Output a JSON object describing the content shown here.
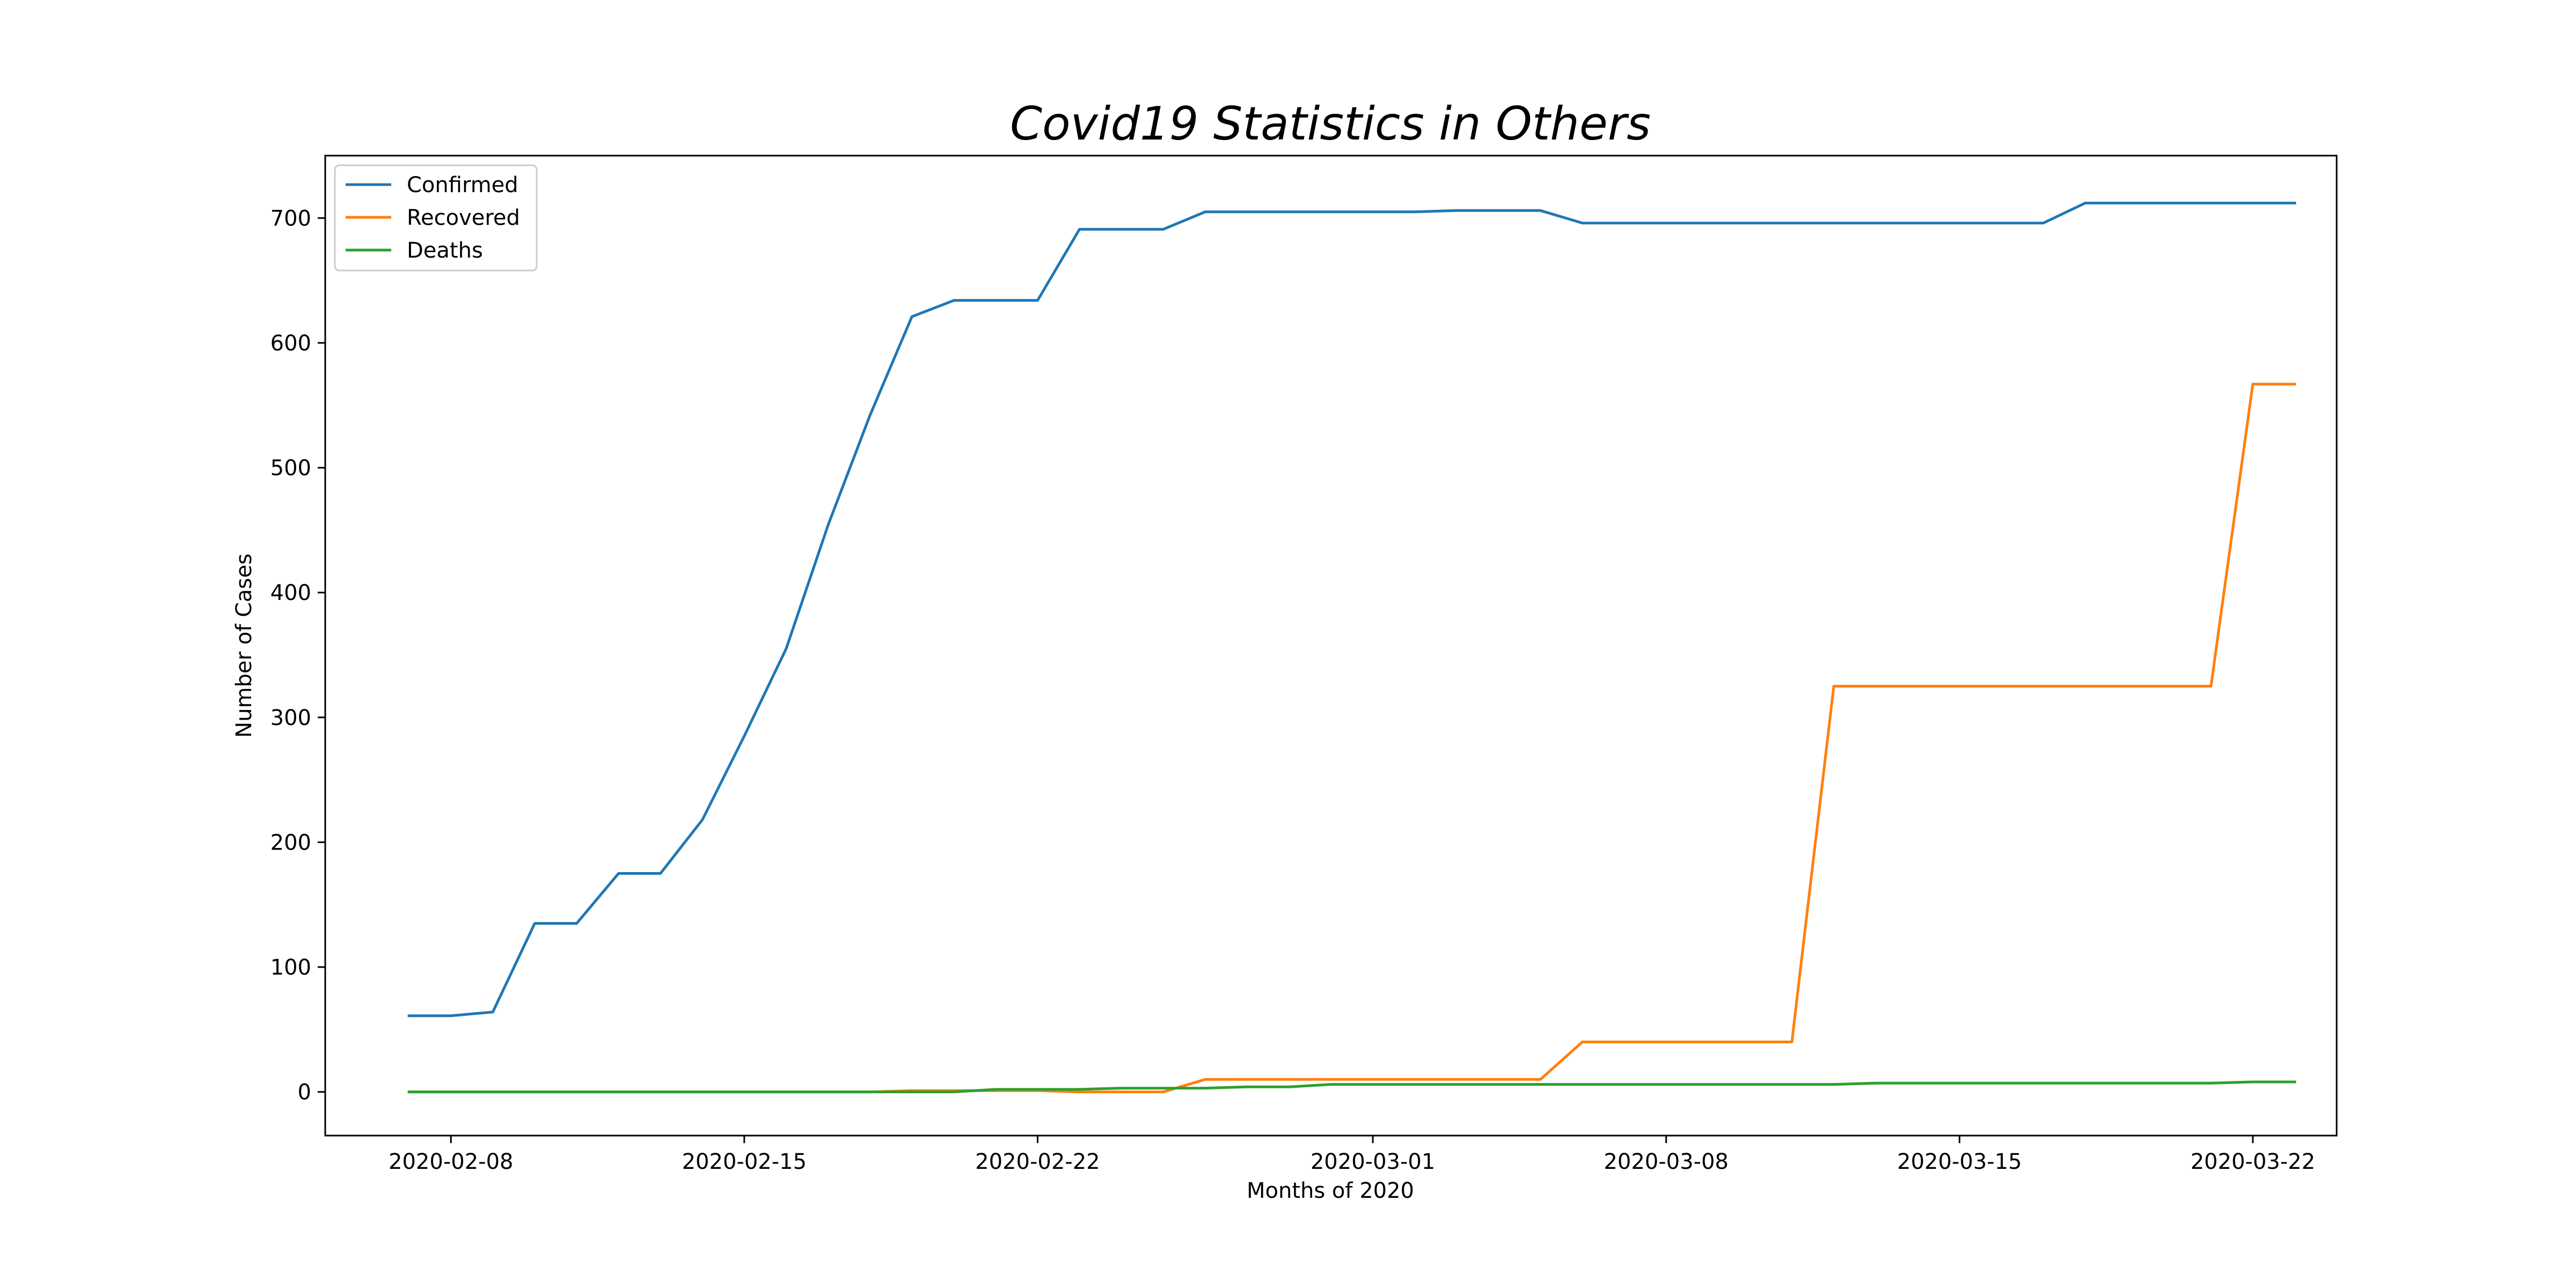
{
  "chart_data": {
    "type": "line",
    "title": "Covid19 Statistics in Others",
    "xlabel": "Months of 2020",
    "ylabel": "Number of Cases",
    "x_start": "2020-02-07",
    "x": [
      "2020-02-07",
      "2020-02-08",
      "2020-02-09",
      "2020-02-10",
      "2020-02-11",
      "2020-02-12",
      "2020-02-13",
      "2020-02-14",
      "2020-02-15",
      "2020-02-16",
      "2020-02-17",
      "2020-02-18",
      "2020-02-19",
      "2020-02-20",
      "2020-02-21",
      "2020-02-22",
      "2020-02-23",
      "2020-02-24",
      "2020-02-25",
      "2020-02-26",
      "2020-02-27",
      "2020-02-28",
      "2020-02-29",
      "2020-03-01",
      "2020-03-02",
      "2020-03-03",
      "2020-03-04",
      "2020-03-05",
      "2020-03-06",
      "2020-03-07",
      "2020-03-08",
      "2020-03-09",
      "2020-03-10",
      "2020-03-11",
      "2020-03-12",
      "2020-03-13",
      "2020-03-14",
      "2020-03-15",
      "2020-03-16",
      "2020-03-17",
      "2020-03-18",
      "2020-03-19",
      "2020-03-20",
      "2020-03-21",
      "2020-03-22",
      "2020-03-23"
    ],
    "xlim": [
      "2020-02-05",
      "2020-03-24"
    ],
    "ylim": [
      -35,
      750
    ],
    "x_ticks": [
      "2020-02-08",
      "2020-02-15",
      "2020-02-22",
      "2020-03-01",
      "2020-03-08",
      "2020-03-15",
      "2020-03-22"
    ],
    "y_ticks": [
      0,
      100,
      200,
      300,
      400,
      500,
      600,
      700
    ],
    "grid": false,
    "legend_position": "top-left",
    "series": [
      {
        "name": "Confirmed",
        "color": "#1f77b4",
        "values": [
          61,
          61,
          64,
          135,
          135,
          175,
          175,
          218,
          285,
          355,
          454,
          542,
          621,
          634,
          634,
          634,
          691,
          691,
          691,
          705,
          705,
          705,
          705,
          705,
          705,
          706,
          706,
          706,
          696,
          696,
          696,
          696,
          696,
          696,
          696,
          696,
          696,
          696,
          696,
          696,
          712,
          712,
          712,
          712,
          712,
          712
        ]
      },
      {
        "name": "Recovered",
        "color": "#ff7f0e",
        "values": [
          0,
          0,
          0,
          0,
          0,
          0,
          0,
          0,
          0,
          0,
          0,
          0,
          1,
          1,
          1,
          1,
          0,
          0,
          0,
          10,
          10,
          10,
          10,
          10,
          10,
          10,
          10,
          10,
          40,
          40,
          40,
          40,
          40,
          40,
          325,
          325,
          325,
          325,
          325,
          325,
          325,
          325,
          325,
          325,
          567,
          567
        ]
      },
      {
        "name": "Deaths",
        "color": "#2ca02c",
        "values": [
          0,
          0,
          0,
          0,
          0,
          0,
          0,
          0,
          0,
          0,
          0,
          0,
          0,
          0,
          2,
          2,
          2,
          3,
          3,
          3,
          4,
          4,
          6,
          6,
          6,
          6,
          6,
          6,
          6,
          6,
          6,
          6,
          6,
          6,
          6,
          7,
          7,
          7,
          7,
          7,
          7,
          7,
          7,
          7,
          8,
          8
        ]
      }
    ]
  }
}
